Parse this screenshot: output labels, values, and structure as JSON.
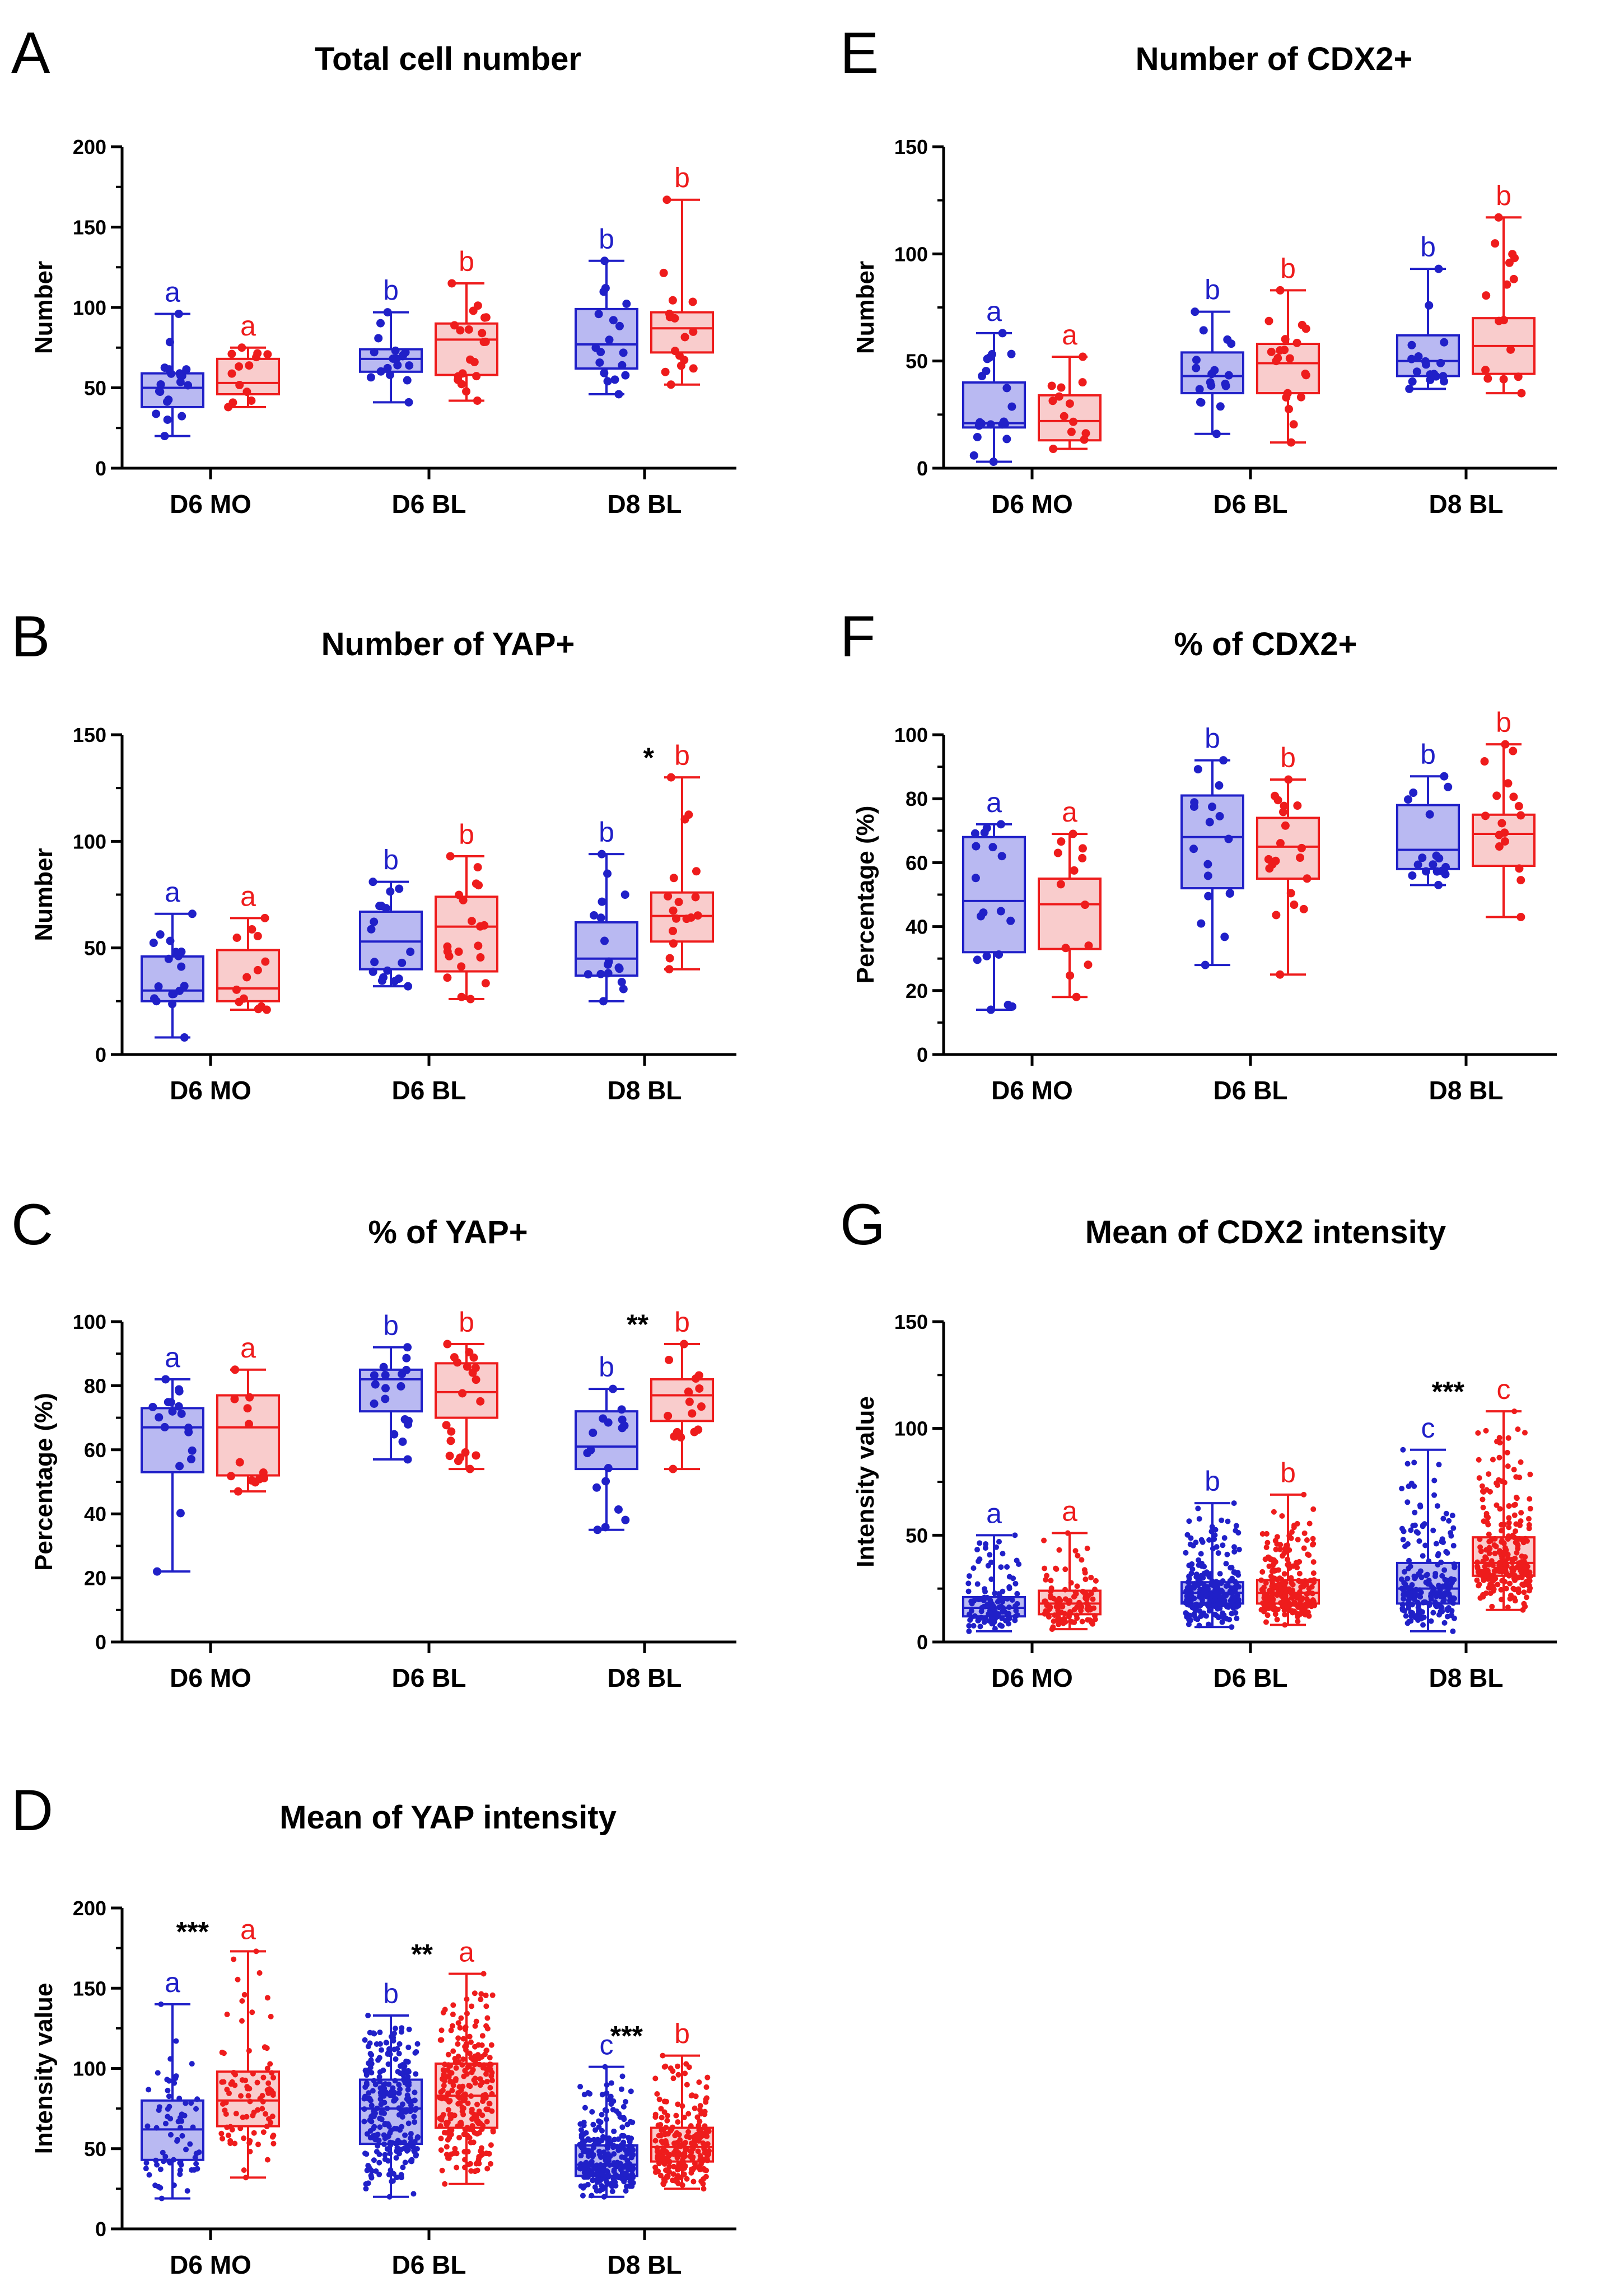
{
  "colors": {
    "blue": "#2020c8",
    "red": "#ee1c1c",
    "blue_fill": "#b9b9f2",
    "red_fill": "#f9cccc"
  },
  "chart_data": [
    {
      "type": "box",
      "panel": "A",
      "title": "Total cell number",
      "ylabel": "Number",
      "xlabel": "",
      "ylim": [
        0,
        200
      ],
      "yticks": [
        0,
        50,
        100,
        150,
        200
      ],
      "categories": [
        "D6 MO",
        "D6 BL",
        "D8 BL"
      ],
      "series": [
        {
          "name": "blue",
          "boxes": [
            {
              "min": 20,
              "q1": 38,
              "median": 50,
              "q3": 59,
              "max": 96,
              "letter": "a",
              "n": 20
            },
            {
              "min": 41,
              "q1": 60,
              "median": 68,
              "q3": 74,
              "max": 97,
              "letter": "b",
              "n": 18
            },
            {
              "min": 46,
              "q1": 62,
              "median": 77,
              "q3": 99,
              "max": 129,
              "letter": "b",
              "n": 18
            }
          ]
        },
        {
          "name": "red",
          "boxes": [
            {
              "min": 38,
              "q1": 46,
              "median": 53,
              "q3": 68,
              "max": 75,
              "letter": "a",
              "n": 13
            },
            {
              "min": 42,
              "q1": 58,
              "median": 80,
              "q3": 90,
              "max": 115,
              "letter": "b",
              "n": 20
            },
            {
              "min": 52,
              "q1": 72,
              "median": 87,
              "q3": 97,
              "max": 167,
              "letter": "b",
              "n": 16
            }
          ]
        }
      ],
      "annotations": []
    },
    {
      "type": "box",
      "panel": "B",
      "title": "Number of YAP+",
      "ylabel": "Number",
      "xlabel": "",
      "ylim": [
        0,
        150
      ],
      "yticks": [
        0,
        50,
        100,
        150
      ],
      "categories": [
        "D6 MO",
        "D6 BL",
        "D8 BL"
      ],
      "series": [
        {
          "name": "blue",
          "boxes": [
            {
              "min": 8,
              "q1": 25,
              "median": 30,
              "q3": 46,
              "max": 66,
              "letter": "a",
              "n": 18
            },
            {
              "min": 32,
              "q1": 40,
              "median": 53,
              "q3": 67,
              "max": 81,
              "letter": "b",
              "n": 18
            },
            {
              "min": 25,
              "q1": 37,
              "median": 45,
              "q3": 62,
              "max": 94,
              "letter": "b",
              "n": 17
            }
          ]
        },
        {
          "name": "red",
          "boxes": [
            {
              "min": 21,
              "q1": 25,
              "median": 31,
              "q3": 49,
              "max": 64,
              "letter": "a",
              "n": 13
            },
            {
              "min": 26,
              "q1": 39,
              "median": 60,
              "q3": 74,
              "max": 93,
              "letter": "b",
              "n": 20
            },
            {
              "min": 40,
              "q1": 53,
              "median": 65,
              "q3": 76,
              "max": 130,
              "letter": "b",
              "n": 17
            }
          ]
        }
      ],
      "annotations": [
        {
          "text": "*",
          "category": 2
        }
      ]
    },
    {
      "type": "box",
      "panel": "C",
      "title": "% of YAP+",
      "ylabel": "Percentage (%)",
      "xlabel": "",
      "ylim": [
        0,
        100
      ],
      "yticks": [
        0,
        20,
        40,
        60,
        80,
        100
      ],
      "categories": [
        "D6 MO",
        "D6 BL",
        "D8 BL"
      ],
      "series": [
        {
          "name": "blue",
          "boxes": [
            {
              "min": 22,
              "q1": 53,
              "median": 67,
              "q3": 73,
              "max": 82,
              "letter": "a",
              "n": 18
            },
            {
              "min": 57,
              "q1": 72,
              "median": 82,
              "q3": 85,
              "max": 92,
              "letter": "b",
              "n": 18
            },
            {
              "min": 35,
              "q1": 54,
              "median": 61,
              "q3": 72,
              "max": 79,
              "letter": "b",
              "n": 17
            }
          ]
        },
        {
          "name": "red",
          "boxes": [
            {
              "min": 47,
              "q1": 52,
              "median": 67,
              "q3": 77,
              "max": 85,
              "letter": "a",
              "n": 13
            },
            {
              "min": 54,
              "q1": 70,
              "median": 78,
              "q3": 87,
              "max": 93,
              "letter": "b",
              "n": 20
            },
            {
              "min": 54,
              "q1": 69,
              "median": 77,
              "q3": 82,
              "max": 93,
              "letter": "b",
              "n": 17
            }
          ]
        }
      ],
      "annotations": [
        {
          "text": "**",
          "category": 2
        }
      ]
    },
    {
      "type": "box",
      "panel": "D",
      "title": "Mean of YAP intensity",
      "ylabel": "Intensity value",
      "xlabel": "",
      "ylim": [
        0,
        200
      ],
      "yticks": [
        0,
        50,
        100,
        150,
        200
      ],
      "categories": [
        "D6 MO",
        "D6 BL",
        "D8 BL"
      ],
      "series": [
        {
          "name": "blue",
          "boxes": [
            {
              "min": 19,
              "q1": 43,
              "median": 62,
              "q3": 80,
              "max": 140,
              "letter": "a",
              "n": 70
            },
            {
              "min": 20,
              "q1": 53,
              "median": 75,
              "q3": 93,
              "max": 133,
              "letter": "b",
              "n": 260
            },
            {
              "min": 20,
              "q1": 33,
              "median": 40,
              "q3": 52,
              "max": 101,
              "letter": "c",
              "n": 260
            }
          ]
        },
        {
          "name": "red",
          "boxes": [
            {
              "min": 32,
              "q1": 64,
              "median": 80,
              "q3": 98,
              "max": 173,
              "letter": "a",
              "n": 90
            },
            {
              "min": 28,
              "q1": 63,
              "median": 83,
              "q3": 103,
              "max": 159,
              "letter": "a",
              "n": 260
            },
            {
              "min": 25,
              "q1": 42,
              "median": 51,
              "q3": 63,
              "max": 108,
              "letter": "b",
              "n": 220
            }
          ]
        }
      ],
      "annotations": [
        {
          "text": "***",
          "category": 0
        },
        {
          "text": "**",
          "category": 1
        },
        {
          "text": "***",
          "category": 2
        }
      ]
    },
    {
      "type": "box",
      "panel": "E",
      "title": "Number of CDX2+",
      "ylabel": "Number",
      "xlabel": "",
      "ylim": [
        0,
        150
      ],
      "yticks": [
        0,
        50,
        100,
        150
      ],
      "categories": [
        "D6 MO",
        "D6 BL",
        "D8 BL"
      ],
      "series": [
        {
          "name": "blue",
          "boxes": [
            {
              "min": 3,
              "q1": 19,
              "median": 21,
              "q3": 40,
              "max": 63,
              "letter": "a",
              "n": 20
            },
            {
              "min": 16,
              "q1": 35,
              "median": 43,
              "q3": 54,
              "max": 73,
              "letter": "b",
              "n": 18
            },
            {
              "min": 37,
              "q1": 43,
              "median": 50,
              "q3": 62,
              "max": 93,
              "letter": "b",
              "n": 18
            }
          ]
        },
        {
          "name": "red",
          "boxes": [
            {
              "min": 9,
              "q1": 13,
              "median": 22,
              "q3": 34,
              "max": 52,
              "letter": "a",
              "n": 13
            },
            {
              "min": 12,
              "q1": 35,
              "median": 49,
              "q3": 58,
              "max": 83,
              "letter": "b",
              "n": 20
            },
            {
              "min": 35,
              "q1": 44,
              "median": 57,
              "q3": 70,
              "max": 117,
              "letter": "b",
              "n": 16
            }
          ]
        }
      ],
      "annotations": []
    },
    {
      "type": "box",
      "panel": "F",
      "title": "% of CDX2+",
      "ylabel": "Percentage (%)",
      "xlabel": "",
      "ylim": [
        0,
        100
      ],
      "yticks": [
        0,
        20,
        40,
        60,
        80,
        100
      ],
      "categories": [
        "D6 MO",
        "D6 BL",
        "D8 BL"
      ],
      "series": [
        {
          "name": "blue",
          "boxes": [
            {
              "min": 14,
              "q1": 32,
              "median": 48,
              "q3": 68,
              "max": 72,
              "letter": "a",
              "n": 18
            },
            {
              "min": 28,
              "q1": 52,
              "median": 68,
              "q3": 81,
              "max": 92,
              "letter": "b",
              "n": 18
            },
            {
              "min": 53,
              "q1": 58,
              "median": 64,
              "q3": 78,
              "max": 87,
              "letter": "b",
              "n": 17
            }
          ]
        },
        {
          "name": "red",
          "boxes": [
            {
              "min": 18,
              "q1": 33,
              "median": 47,
              "q3": 55,
              "max": 69,
              "letter": "a",
              "n": 13
            },
            {
              "min": 25,
              "q1": 55,
              "median": 65,
              "q3": 74,
              "max": 86,
              "letter": "b",
              "n": 20
            },
            {
              "min": 43,
              "q1": 59,
              "median": 69,
              "q3": 75,
              "max": 97,
              "letter": "b",
              "n": 17
            }
          ]
        }
      ],
      "annotations": []
    },
    {
      "type": "box",
      "panel": "G",
      "title": "Mean of CDX2 intensity",
      "ylabel": "Intensity value",
      "xlabel": "",
      "ylim": [
        0,
        150
      ],
      "yticks": [
        0,
        50,
        100,
        150
      ],
      "categories": [
        "D6 MO",
        "D6 BL",
        "D8 BL"
      ],
      "series": [
        {
          "name": "blue",
          "boxes": [
            {
              "min": 5,
              "q1": 12,
              "median": 16,
              "q3": 21,
              "max": 50,
              "letter": "a",
              "n": 120
            },
            {
              "min": 7,
              "q1": 18,
              "median": 23,
              "q3": 28,
              "max": 65,
              "letter": "b",
              "n": 260
            },
            {
              "min": 5,
              "q1": 18,
              "median": 25,
              "q3": 37,
              "max": 90,
              "letter": "c",
              "n": 200
            }
          ]
        },
        {
          "name": "red",
          "boxes": [
            {
              "min": 6,
              "q1": 13,
              "median": 18,
              "q3": 24,
              "max": 51,
              "letter": "a",
              "n": 110
            },
            {
              "min": 8,
              "q1": 18,
              "median": 23,
              "q3": 29,
              "max": 69,
              "letter": "b",
              "n": 240
            },
            {
              "min": 15,
              "q1": 31,
              "median": 37,
              "q3": 49,
              "max": 108,
              "letter": "c",
              "n": 260
            }
          ]
        }
      ],
      "annotations": [
        {
          "text": "***",
          "category": 2
        }
      ]
    }
  ]
}
